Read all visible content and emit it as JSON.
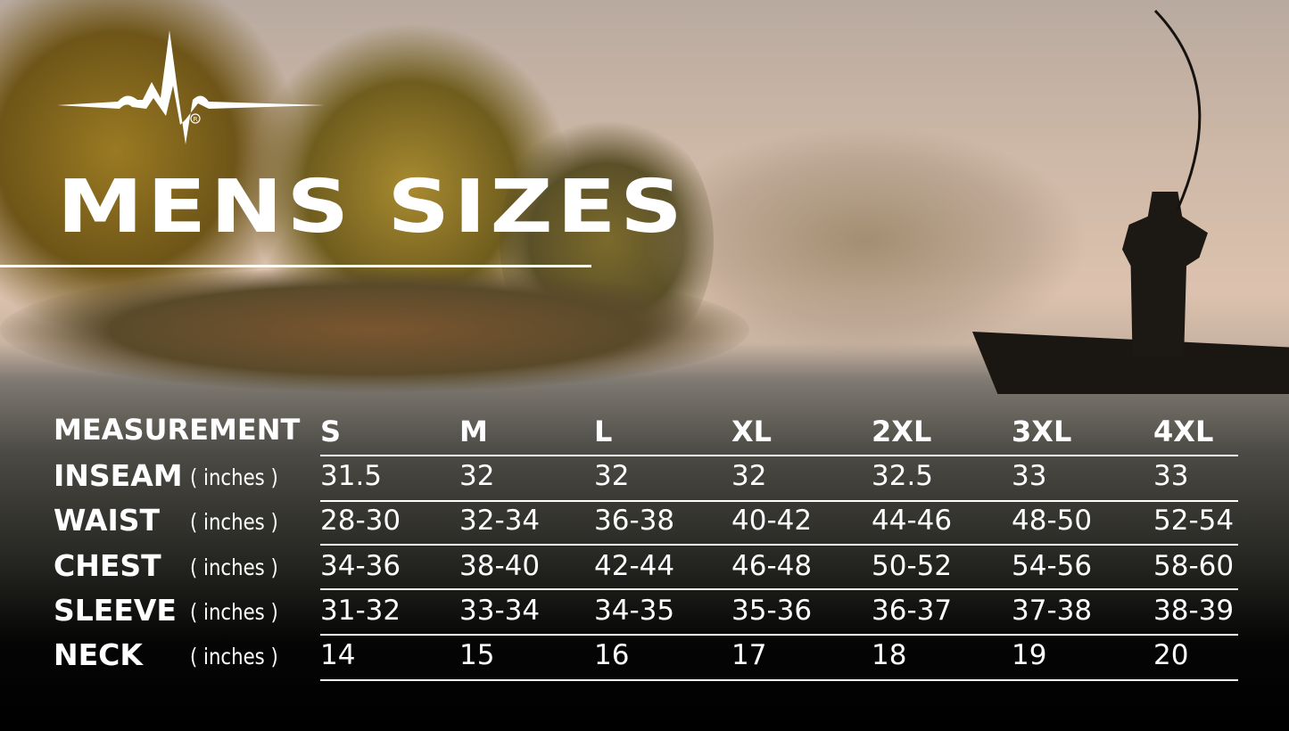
{
  "title": "MENS SIZES",
  "logo": {
    "name": "heartbeat-logo",
    "registered_mark": "®"
  },
  "table": {
    "header_label": "MEASUREMENT",
    "sizes": [
      "S",
      "M",
      "L",
      "XL",
      "2XL",
      "3XL",
      "4XL"
    ],
    "rows": [
      {
        "label": "INSEAM",
        "unit": "( inches )",
        "values": [
          "31.5",
          "32",
          "32",
          "32",
          "32.5",
          "33",
          "33"
        ]
      },
      {
        "label": "WAIST",
        "unit": "( inches )",
        "values": [
          "28-30",
          "32-34",
          "36-38",
          "40-42",
          "44-46",
          "48-50",
          "52-54"
        ]
      },
      {
        "label": "CHEST",
        "unit": "( inches )",
        "values": [
          "34-36",
          "38-40",
          "42-44",
          "46-48",
          "50-52",
          "54-56",
          "58-60"
        ]
      },
      {
        "label": "SLEEVE",
        "unit": "( inches )",
        "values": [
          "31-32",
          "33-34",
          "34-35",
          "35-36",
          "36-37",
          "37-38",
          "38-39"
        ]
      },
      {
        "label": "NECK",
        "unit": "( inches )",
        "values": [
          "14",
          "15",
          "16",
          "17",
          "18",
          "19",
          "20"
        ]
      }
    ]
  },
  "colors": {
    "text": "#ffffff",
    "sky": "#dcc2ae",
    "foliage": "#8a6a1c"
  }
}
